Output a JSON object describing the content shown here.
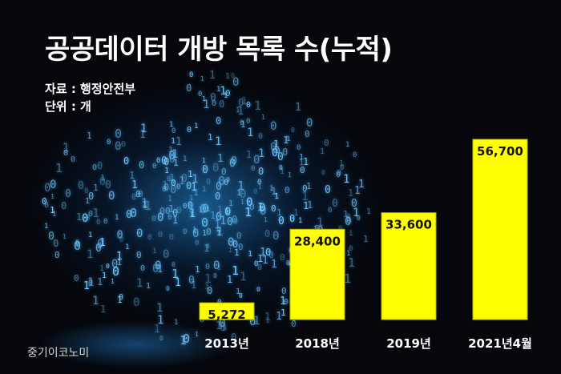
{
  "title": "공공데이터 개방 목록 수(누적)",
  "source": "자료 : 행정안전부",
  "unit": "단위 : 개",
  "brand": "중기이코노미",
  "colors": {
    "bar": "#ffff00",
    "bar_edge": "#b8b800",
    "background": "#05070c",
    "glow": "#2c8fe0"
  },
  "chart_data": {
    "type": "bar",
    "categories": [
      "2013년",
      "2018년",
      "2019년",
      "2021년4월"
    ],
    "values": [
      5272,
      28400,
      33600,
      56700
    ],
    "value_labels": [
      "5,272",
      "28,400",
      "33,600",
      "56,700"
    ],
    "title": "공공데이터 개방 목록 수(누적)",
    "xlabel": "",
    "ylabel": "",
    "ylim": [
      0,
      56700
    ],
    "grid": false,
    "legend": "none"
  }
}
